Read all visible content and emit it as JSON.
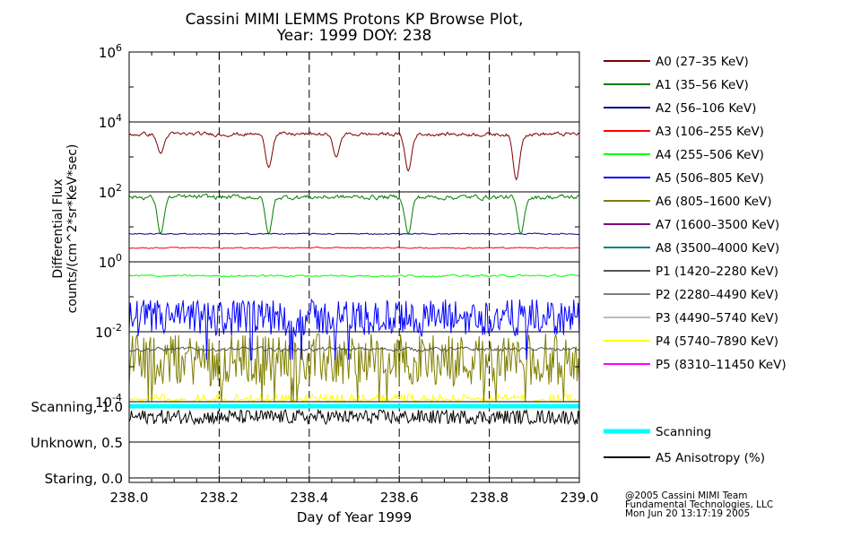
{
  "chart_data": {
    "type": "line",
    "title_line1": "Cassini MIMI LEMMS Protons KP Browse Plot,",
    "title_line2": "Year: 1999 DOY: 238",
    "xlabel": "Day of Year 1999",
    "ylabel_line1": "Differential Flux",
    "ylabel_line2": "counts/(cm^2*sr*KeV*sec)",
    "xlim": [
      238.0,
      239.0
    ],
    "ylim_log10": [
      -4,
      6
    ],
    "x_ticks": [
      "238.0",
      "238.2",
      "238.4",
      "238.6",
      "238.8",
      "239.0"
    ],
    "x_tick_values": [
      238.0,
      238.2,
      238.4,
      238.6,
      238.8,
      239.0
    ],
    "y_ticks": [
      {
        "base": "10",
        "exp": "6",
        "log": 6
      },
      {
        "base": "10",
        "exp": "4",
        "log": 4
      },
      {
        "base": "10",
        "exp": "2",
        "log": 2
      },
      {
        "base": "10",
        "exp": "0",
        "log": 0
      },
      {
        "base": "10",
        "exp": "-2",
        "log": -2
      },
      {
        "base": "10",
        "exp": "-4",
        "log": -4
      }
    ],
    "dashed_day_markers": [
      238.2,
      238.4,
      238.6,
      238.8
    ],
    "legend": [
      {
        "label": "A0 (27–35 KeV)",
        "color": "#7f0000"
      },
      {
        "label": "A1 (35–56 KeV)",
        "color": "#007f00"
      },
      {
        "label": "A2 (56–106 KeV)",
        "color": "#00007f"
      },
      {
        "label": "A3 (106–255 KeV)",
        "color": "#ff0000"
      },
      {
        "label": "A4 (255–506 KeV)",
        "color": "#00ff00"
      },
      {
        "label": "A5 (506–805 KeV)",
        "color": "#0000ff"
      },
      {
        "label": "A6 (805–1600 KeV)",
        "color": "#7f7f00"
      },
      {
        "label": "A7 (1600–3500 KeV)",
        "color": "#7f007f"
      },
      {
        "label": "A8 (3500–4000 KeV)",
        "color": "#007f7f"
      },
      {
        "label": "P1 (1420–2280 KeV)",
        "color": "#555555"
      },
      {
        "label": "P2 (2280–4490 KeV)",
        "color": "#7f7f7f"
      },
      {
        "label": "P3 (4490–5740 KeV)",
        "color": "#bbbbbb"
      },
      {
        "label": "P4 (5740–7890 KeV)",
        "color": "#ffff00"
      },
      {
        "label": "P5 (8310–11450 KeV)",
        "color": "#ff00ff"
      }
    ],
    "series": [
      {
        "name": "A0",
        "color": "#7f0000",
        "level_log": 3.65,
        "noise": 0.1,
        "dips": [
          [
            238.07,
            3.1
          ],
          [
            238.31,
            2.7
          ],
          [
            238.46,
            3.0
          ],
          [
            238.62,
            2.6
          ],
          [
            238.86,
            2.35
          ]
        ]
      },
      {
        "name": "A1",
        "color": "#007f00",
        "level_log": 1.85,
        "noise": 0.12,
        "dips": [
          [
            238.07,
            0.8
          ],
          [
            238.31,
            0.8
          ],
          [
            238.62,
            0.8
          ],
          [
            238.87,
            0.8
          ]
        ]
      },
      {
        "name": "A2",
        "color": "#00007f",
        "level_log": 0.8,
        "noise": 0.03,
        "dips": []
      },
      {
        "name": "A3",
        "color": "#ff0000",
        "level_log": 0.4,
        "noise": 0.03,
        "dips": []
      },
      {
        "name": "A4",
        "color": "#00ff00",
        "level_log": -0.4,
        "noise": 0.05,
        "dips": []
      },
      {
        "name": "A5",
        "color": "#0000ff",
        "level_log": -1.6,
        "noise": 0.35,
        "dips": []
      },
      {
        "name": "A6",
        "color": "#7f7f00",
        "level_log": -2.8,
        "noise": 0.5,
        "dips": []
      },
      {
        "name": "P1",
        "color": "#555555",
        "level_log": -2.5,
        "noise": 0.1,
        "dips": []
      },
      {
        "name": "P4",
        "color": "#ffff00",
        "level_log": -3.95,
        "noise": 0.12,
        "dips": []
      }
    ],
    "panel2": {
      "y_labels": [
        "Scanning, 1.0",
        "Unknown, 0.5",
        "Staring, 0.0"
      ],
      "y_values": [
        1.0,
        0.5,
        0.0
      ],
      "scanning_value": 1.0,
      "anisotropy_mean": 0.85,
      "legend": [
        {
          "label": "Scanning",
          "color": "#00ffff"
        },
        {
          "label": "A5 Anisotropy (%)",
          "color": "#000000"
        }
      ]
    },
    "credits": [
      "@2005 Cassini MIMI Team",
      "Fundamental Technologies, LLC",
      "Mon Jun 20 13:17:19 2005"
    ]
  }
}
